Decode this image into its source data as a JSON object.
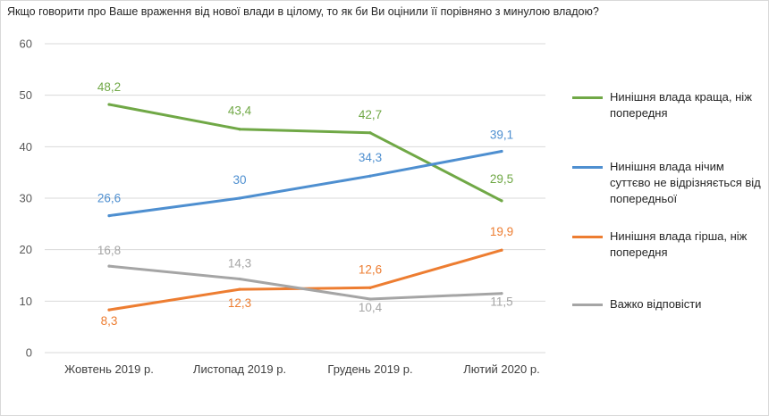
{
  "chart_data": {
    "type": "line",
    "title": "Якщо говорити про Ваше враження від нової влади в цілому, то як би Ви оцінили її порівняно з минулою владою?",
    "xlabel": "",
    "ylabel": "",
    "categories": [
      "Жовтень 2019 р.",
      "Листопад 2019 р.",
      "Грудень 2019 р.",
      "Лютий 2020 р."
    ],
    "ylim": [
      0,
      60
    ],
    "yticks": [
      "0",
      "10",
      "20",
      "30",
      "40",
      "50",
      "60"
    ],
    "grid": true,
    "legend_position": "right",
    "series": [
      {
        "name": "Нинішня влада краща, ніж попередня",
        "color": "#70a846",
        "values": [
          48.2,
          43.4,
          42.7,
          29.5
        ],
        "labels": [
          "48,2",
          "43,4",
          "42,7",
          "29,5"
        ]
      },
      {
        "name": "Нинішня влада нічим суттєво не відрізняється від попередньої",
        "color": "#4e8fd0",
        "values": [
          26.6,
          30,
          34.3,
          39.1
        ],
        "labels": [
          "26,6",
          "30",
          "34,3",
          "39,1"
        ]
      },
      {
        "name": "Нинішня влада гірша, ніж попередня",
        "color": "#ed7d31",
        "values": [
          8.3,
          12.3,
          12.6,
          19.9
        ],
        "labels": [
          "8,3",
          "12,3",
          "12,6",
          "19,9"
        ]
      },
      {
        "name": "Важко відповісти",
        "color": "#a5a5a5",
        "values": [
          16.8,
          14.3,
          10.4,
          11.5
        ],
        "labels": [
          "16,8",
          "14,3",
          "10,4",
          "11,5"
        ]
      }
    ]
  }
}
